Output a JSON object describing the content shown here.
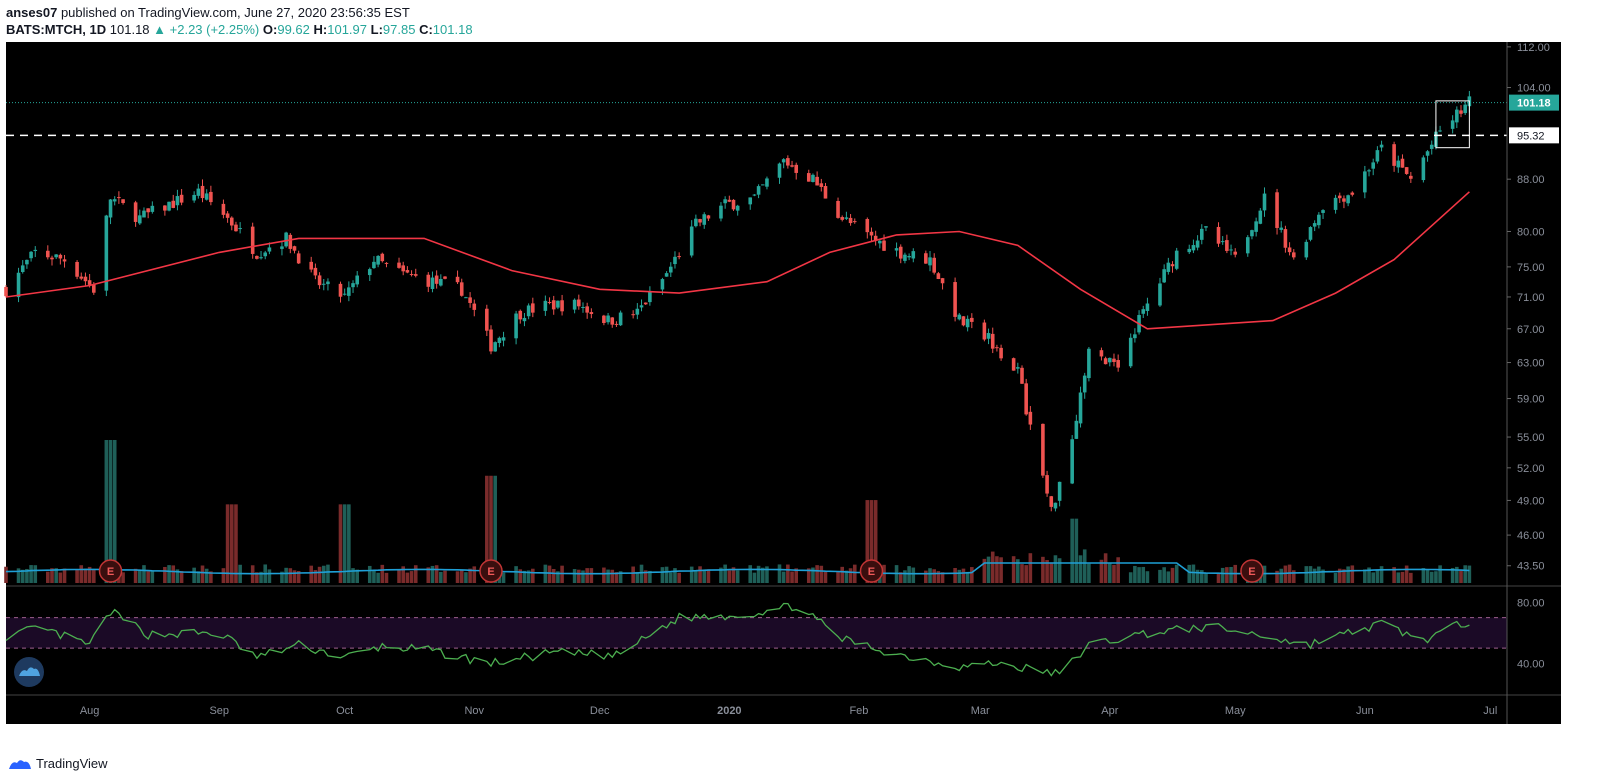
{
  "header": {
    "author": "anses07",
    "published_text": "published on TradingView.com, June 27, 2020 23:56:35 EST",
    "symbol": "BATS:MTCH, 1D",
    "last": "101.18",
    "change": "▲ +2.23 (+2.25%)",
    "o_label": "O:",
    "o_value": "99.62",
    "h_label": "H:",
    "h_value": "101.97",
    "l_label": "L:",
    "l_value": "97.85",
    "c_label": "C:",
    "c_value": "101.18"
  },
  "footer": {
    "brand": "TradingView"
  },
  "colors": {
    "background": "#000000",
    "up": "#26a69a",
    "down": "#ef5350",
    "ma": "#f23645",
    "volume_ma": "#1e9fd6",
    "rsi": "#4caf50",
    "rsi_band": "#1b0a26",
    "rsi_band_line": "#9e5f8f"
  },
  "chart_data": {
    "type": "candlestick",
    "symbol": "BATS:MTCH",
    "interval": "1D",
    "x_axis": {
      "range": [
        "2019-07-12",
        "2020-07-05"
      ],
      "tick_labels": [
        {
          "label": "Aug",
          "date": "2019-08-01"
        },
        {
          "label": "Sep",
          "date": "2019-09-01"
        },
        {
          "label": "Oct",
          "date": "2019-10-01"
        },
        {
          "label": "Nov",
          "date": "2019-11-01"
        },
        {
          "label": "Dec",
          "date": "2019-12-01"
        },
        {
          "label": "2020",
          "date": "2020-01-01"
        },
        {
          "label": "Feb",
          "date": "2020-02-01"
        },
        {
          "label": "Mar",
          "date": "2020-03-01"
        },
        {
          "label": "Apr",
          "date": "2020-04-01"
        },
        {
          "label": "May",
          "date": "2020-05-01"
        },
        {
          "label": "Jun",
          "date": "2020-06-01"
        },
        {
          "label": "Jul",
          "date": "2020-07-01"
        }
      ]
    },
    "y_axis": {
      "scale": "log",
      "range": [
        42,
        113
      ],
      "tick_labels": [
        "112.00",
        "104.00",
        "88.00",
        "80.00",
        "75.00",
        "71.00",
        "67.00",
        "63.00",
        "59.00",
        "55.00",
        "52.00",
        "49.00",
        "46.00",
        "43.50"
      ],
      "tick_values": [
        112,
        104,
        88,
        80,
        75,
        71,
        67,
        63,
        59,
        55,
        52,
        49,
        46,
        43.5
      ]
    },
    "price_labels": [
      {
        "label": "101.18",
        "value": 101.18,
        "style": "last-price"
      },
      {
        "label": "95.32",
        "value": 95.32,
        "style": "horizontal-line"
      }
    ],
    "horizontal_line": {
      "value": 95.32,
      "style": "dashed",
      "color": "#ffffff"
    },
    "rectangle": {
      "date_from": "2020-06-18",
      "date_to": "2020-06-26",
      "price_high": 101.5,
      "price_low": 93.2
    },
    "anchors": [
      {
        "date": "2019-07-12",
        "close": 72
      },
      {
        "date": "2019-07-19",
        "close": 77
      },
      {
        "date": "2019-07-26",
        "close": 76
      },
      {
        "date": "2019-08-02",
        "close": 72
      },
      {
        "date": "2019-08-06",
        "close": 85
      },
      {
        "date": "2019-08-13",
        "close": 82
      },
      {
        "date": "2019-08-20",
        "close": 84
      },
      {
        "date": "2019-08-27",
        "close": 86
      },
      {
        "date": "2019-09-03",
        "close": 82
      },
      {
        "date": "2019-09-10",
        "close": 77
      },
      {
        "date": "2019-09-17",
        "close": 79
      },
      {
        "date": "2019-09-24",
        "close": 73
      },
      {
        "date": "2019-10-01",
        "close": 71
      },
      {
        "date": "2019-10-08",
        "close": 76
      },
      {
        "date": "2019-10-15",
        "close": 74
      },
      {
        "date": "2019-10-22",
        "close": 73
      },
      {
        "date": "2019-10-29",
        "close": 72
      },
      {
        "date": "2019-11-05",
        "close": 65
      },
      {
        "date": "2019-11-12",
        "close": 69
      },
      {
        "date": "2019-11-19",
        "close": 70
      },
      {
        "date": "2019-11-26",
        "close": 70
      },
      {
        "date": "2019-12-03",
        "close": 68
      },
      {
        "date": "2019-12-10",
        "close": 69
      },
      {
        "date": "2019-12-17",
        "close": 74
      },
      {
        "date": "2019-12-24",
        "close": 81
      },
      {
        "date": "2019-12-31",
        "close": 84
      },
      {
        "date": "2020-01-07",
        "close": 85
      },
      {
        "date": "2020-01-14",
        "close": 91
      },
      {
        "date": "2020-01-21",
        "close": 88
      },
      {
        "date": "2020-01-28",
        "close": 82
      },
      {
        "date": "2020-02-04",
        "close": 79
      },
      {
        "date": "2020-02-11",
        "close": 77
      },
      {
        "date": "2020-02-18",
        "close": 76
      },
      {
        "date": "2020-02-25",
        "close": 68
      },
      {
        "date": "2020-03-03",
        "close": 66
      },
      {
        "date": "2020-03-10",
        "close": 62
      },
      {
        "date": "2020-03-13",
        "close": 56
      },
      {
        "date": "2020-03-18",
        "close": 48
      },
      {
        "date": "2020-03-23",
        "close": 55
      },
      {
        "date": "2020-03-27",
        "close": 64
      },
      {
        "date": "2020-04-03",
        "close": 63
      },
      {
        "date": "2020-04-10",
        "close": 70
      },
      {
        "date": "2020-04-17",
        "close": 77
      },
      {
        "date": "2020-04-24",
        "close": 80
      },
      {
        "date": "2020-05-01",
        "close": 76
      },
      {
        "date": "2020-05-08",
        "close": 85
      },
      {
        "date": "2020-05-15",
        "close": 76
      },
      {
        "date": "2020-05-22",
        "close": 84
      },
      {
        "date": "2020-05-29",
        "close": 86
      },
      {
        "date": "2020-06-05",
        "close": 93
      },
      {
        "date": "2020-06-12",
        "close": 88
      },
      {
        "date": "2020-06-19",
        "close": 96
      },
      {
        "date": "2020-06-26",
        "close": 101.18
      }
    ],
    "moving_average": {
      "color": "#f23645",
      "points": [
        {
          "date": "2019-07-12",
          "value": 71
        },
        {
          "date": "2019-08-01",
          "value": 72.5
        },
        {
          "date": "2019-09-01",
          "value": 77
        },
        {
          "date": "2019-09-20",
          "value": 79
        },
        {
          "date": "2019-10-10",
          "value": 79
        },
        {
          "date": "2019-10-20",
          "value": 79
        },
        {
          "date": "2019-11-10",
          "value": 74.5
        },
        {
          "date": "2019-12-01",
          "value": 72
        },
        {
          "date": "2019-12-20",
          "value": 71.5
        },
        {
          "date": "2020-01-10",
          "value": 73
        },
        {
          "date": "2020-01-25",
          "value": 77
        },
        {
          "date": "2020-02-10",
          "value": 79.5
        },
        {
          "date": "2020-02-25",
          "value": 80
        },
        {
          "date": "2020-03-10",
          "value": 78
        },
        {
          "date": "2020-03-25",
          "value": 72
        },
        {
          "date": "2020-04-10",
          "value": 67
        },
        {
          "date": "2020-04-25",
          "value": 67.5
        },
        {
          "date": "2020-05-10",
          "value": 68
        },
        {
          "date": "2020-05-25",
          "value": 71.5
        },
        {
          "date": "2020-06-08",
          "value": 76
        },
        {
          "date": "2020-06-26",
          "value": 86
        }
      ]
    },
    "earnings_markers": [
      {
        "date": "2019-08-06",
        "label": "E"
      },
      {
        "date": "2019-11-05",
        "label": "E"
      },
      {
        "date": "2020-02-04",
        "label": "E"
      },
      {
        "date": "2020-05-05",
        "label": "E"
      }
    ],
    "volume_spikes": [
      {
        "date": "2019-08-06",
        "relative": 1.0
      },
      {
        "date": "2019-09-04",
        "relative": 0.55
      },
      {
        "date": "2019-10-01",
        "relative": 0.55
      },
      {
        "date": "2019-11-05",
        "relative": 0.75
      },
      {
        "date": "2020-02-04",
        "relative": 0.58
      },
      {
        "date": "2020-03-23",
        "relative": 0.45
      }
    ],
    "rsi": {
      "ticks": [
        "80.00",
        "40.00"
      ],
      "tick_values": [
        80,
        40
      ],
      "band": [
        50,
        70
      ],
      "points": [
        {
          "date": "2019-07-12",
          "value": 58
        },
        {
          "date": "2019-07-20",
          "value": 63
        },
        {
          "date": "2019-08-01",
          "value": 52
        },
        {
          "date": "2019-08-06",
          "value": 74
        },
        {
          "date": "2019-08-15",
          "value": 59
        },
        {
          "date": "2019-09-01",
          "value": 60
        },
        {
          "date": "2019-09-10",
          "value": 44
        },
        {
          "date": "2019-09-20",
          "value": 52
        },
        {
          "date": "2019-10-01",
          "value": 44
        },
        {
          "date": "2019-10-10",
          "value": 51
        },
        {
          "date": "2019-10-20",
          "value": 49
        },
        {
          "date": "2019-11-05",
          "value": 40
        },
        {
          "date": "2019-11-20",
          "value": 47
        },
        {
          "date": "2019-12-05",
          "value": 45
        },
        {
          "date": "2019-12-20",
          "value": 70
        },
        {
          "date": "2020-01-05",
          "value": 72
        },
        {
          "date": "2020-01-17",
          "value": 78
        },
        {
          "date": "2020-01-28",
          "value": 56
        },
        {
          "date": "2020-02-10",
          "value": 46
        },
        {
          "date": "2020-02-25",
          "value": 38
        },
        {
          "date": "2020-03-05",
          "value": 40
        },
        {
          "date": "2020-03-20",
          "value": 33
        },
        {
          "date": "2020-03-27",
          "value": 52
        },
        {
          "date": "2020-04-10",
          "value": 60
        },
        {
          "date": "2020-04-25",
          "value": 64
        },
        {
          "date": "2020-05-08",
          "value": 58
        },
        {
          "date": "2020-05-18",
          "value": 52
        },
        {
          "date": "2020-06-05",
          "value": 66
        },
        {
          "date": "2020-06-15",
          "value": 55
        },
        {
          "date": "2020-06-26",
          "value": 68
        }
      ]
    }
  }
}
